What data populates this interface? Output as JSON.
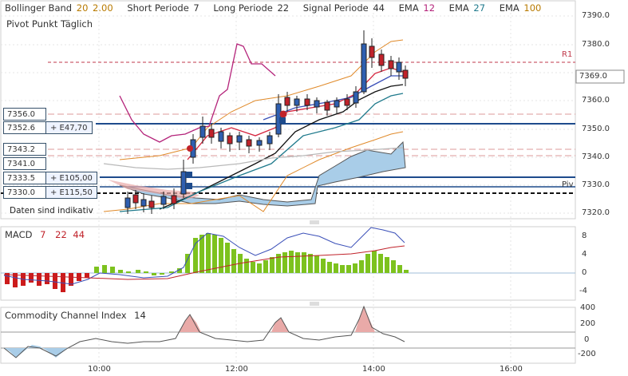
{
  "legend": {
    "bollinger": {
      "label": "Bollinger Band",
      "p1": "20",
      "p2": "2.00"
    },
    "short": {
      "label": "Short Periode",
      "value": "7"
    },
    "long": {
      "label": "Long Periode",
      "value": "22"
    },
    "signal": {
      "label": "Signal Periode",
      "value": "44"
    },
    "ema1": {
      "label": "EMA",
      "value": "12"
    },
    "ema2": {
      "label": "EMA",
      "value": "27"
    },
    "ema3": {
      "label": "EMA",
      "value": "100"
    },
    "pivot": "Pivot Punkt Täglich"
  },
  "order_levels": [
    {
      "price": "7356.0",
      "extra": ""
    },
    {
      "price": "7352.6",
      "extra": "+ E47,70"
    },
    {
      "price": "7343.2",
      "extra": ""
    },
    {
      "price": "7341.0",
      "extra": ""
    },
    {
      "price": "7333.5",
      "extra": "+ E105,00"
    },
    {
      "price": "7330.0",
      "extra": "+ E115,50"
    }
  ],
  "note": "Daten sind indikativ",
  "labels": {
    "r1": "R1",
    "piv": "Piv"
  },
  "current_price": "7369.0",
  "price_axis": [
    "7390.0",
    "7380.0",
    "7370.0",
    "7360.0",
    "7350.0",
    "7340.0",
    "7330.0",
    "7320.0"
  ],
  "macd": {
    "label": "MACD",
    "p1": "7",
    "p2": "22",
    "p3": "44",
    "axis": [
      "8",
      "4",
      "0",
      "-4"
    ]
  },
  "cci": {
    "label": "Commodity Channel Index",
    "period": "14",
    "axis": [
      "400",
      "200",
      "0",
      "-200"
    ]
  },
  "time_axis": [
    "10:00",
    "12:00",
    "14:00",
    "16:00"
  ],
  "colors": {
    "up": "#2f5fb0",
    "down": "#c0222a",
    "ema12": "#b4237a",
    "ema27": "#1f7a8c",
    "ema100": "#b87a00",
    "macd_hist": "#7dc21e",
    "macd_neg": "#cc1b1b",
    "band": "#a9cde8"
  }
}
